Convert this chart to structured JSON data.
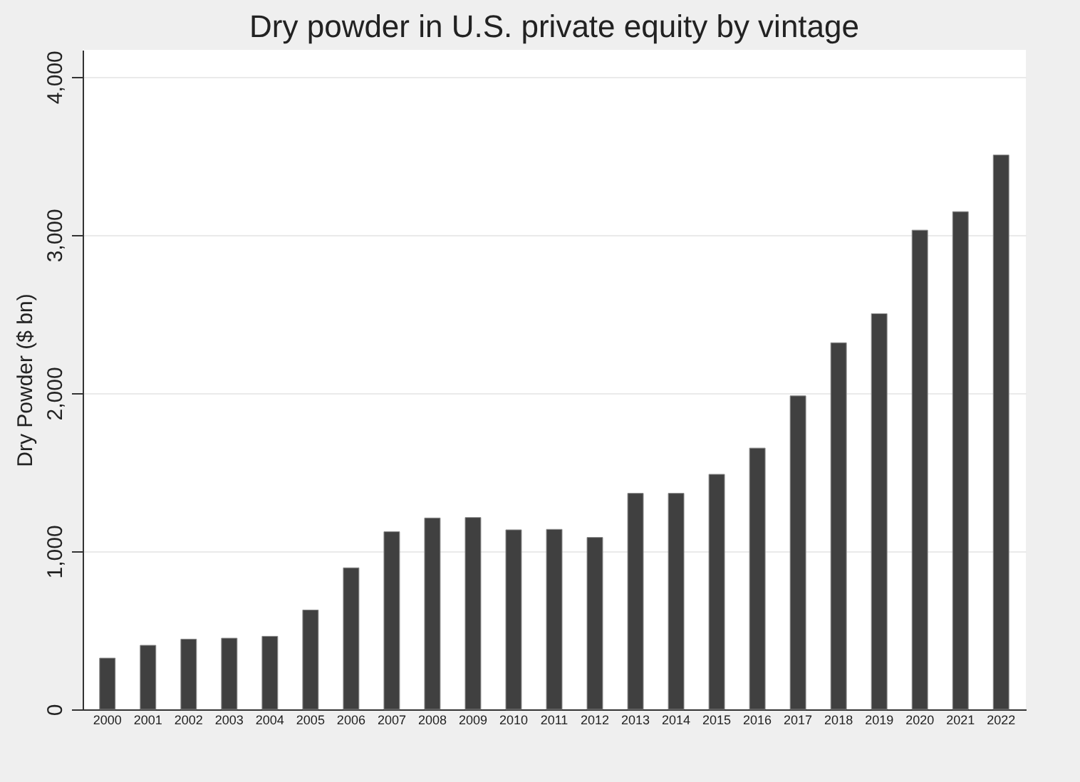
{
  "chart_data": {
    "type": "bar",
    "title": "Dry powder in U.S. private equity by vintage",
    "ylabel": "Dry Powder ($ bn)",
    "categories": [
      "2000",
      "2001",
      "2002",
      "2003",
      "2004",
      "2005",
      "2006",
      "2007",
      "2008",
      "2009",
      "2010",
      "2011",
      "2012",
      "2013",
      "2014",
      "2015",
      "2016",
      "2017",
      "2018",
      "2019",
      "2020",
      "2021",
      "2022"
    ],
    "values": [
      324,
      405,
      444,
      450,
      462,
      628,
      895,
      1123,
      1210,
      1213,
      1135,
      1138,
      1087,
      1366,
      1366,
      1486,
      1652,
      1982,
      2318,
      2502,
      3030,
      3147,
      3505
    ],
    "color": "#404040",
    "ylim": [
      0,
      4170
    ],
    "yticks": [
      0,
      {
        "value": 1000,
        "label": "1,000"
      },
      {
        "value": 2000,
        "label": "2,000"
      },
      {
        "value": 3000,
        "label": "3,000"
      },
      {
        "value": 4000,
        "label": "4,000"
      }
    ],
    "grid": "y"
  }
}
